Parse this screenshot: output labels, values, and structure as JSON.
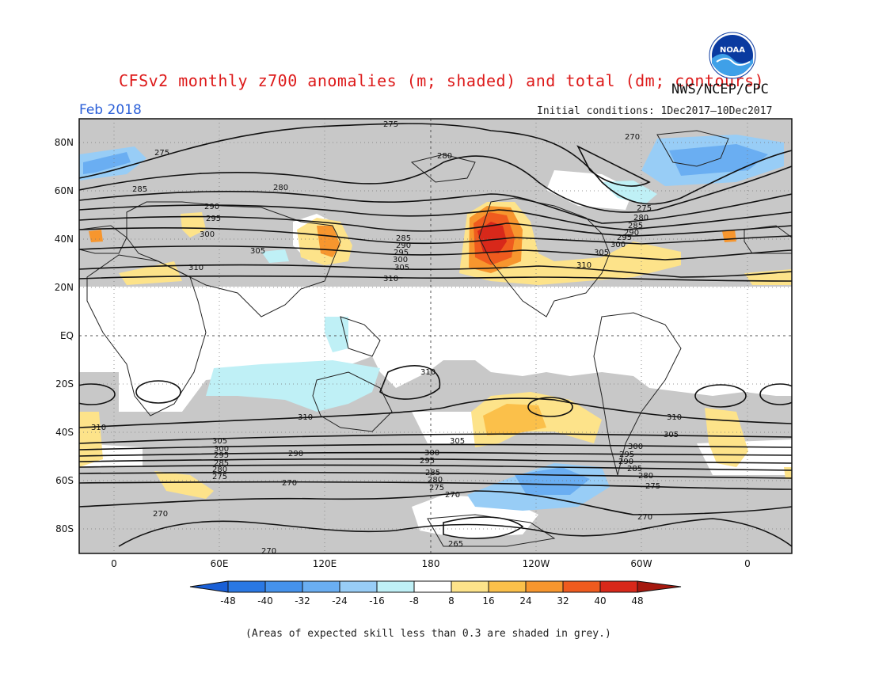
{
  "title": "CFSv2 monthly z700 anomalies (m; shaded) and total (dm; contours)",
  "agency": "NWS/NCEP/CPC",
  "logo_text": "NOAA",
  "month": "Feb 2018",
  "initial_conditions": "Initial conditions: 1Dec2017–10Dec2017",
  "note": "(Areas of expected skill less than 0.3 are shaded in grey.)",
  "axes": {
    "lat_labels": [
      "80N",
      "60N",
      "40N",
      "20N",
      "EQ",
      "20S",
      "40S",
      "60S",
      "80S"
    ],
    "lon_labels": [
      "0",
      "60E",
      "120E",
      "180",
      "120W",
      "60W",
      "0"
    ]
  },
  "colorbar": {
    "labels": [
      "-48",
      "-40",
      "-32",
      "-24",
      "-16",
      "-8",
      "8",
      "16",
      "24",
      "32",
      "40",
      "48"
    ],
    "colors": [
      "#1a5fd6",
      "#2a78e4",
      "#4592ec",
      "#6aaef2",
      "#98cdf6",
      "#bff0f6",
      "#ffffff",
      "#fde38a",
      "#fbc04a",
      "#f7962e",
      "#ef5b1e",
      "#d8281a",
      "#a5180e"
    ]
  },
  "contour_labels": [
    {
      "text": "275"
    },
    {
      "text": "270"
    },
    {
      "text": "280"
    },
    {
      "text": "275"
    },
    {
      "text": "285"
    },
    {
      "text": "280"
    },
    {
      "text": "290"
    },
    {
      "text": "295"
    },
    {
      "text": "300"
    },
    {
      "text": "305"
    },
    {
      "text": "285"
    },
    {
      "text": "290"
    },
    {
      "text": "295"
    },
    {
      "text": "300"
    },
    {
      "text": "305"
    },
    {
      "text": "310"
    },
    {
      "text": "275"
    },
    {
      "text": "280"
    },
    {
      "text": "285"
    },
    {
      "text": "290"
    },
    {
      "text": "295"
    },
    {
      "text": "300"
    },
    {
      "text": "305"
    },
    {
      "text": "310"
    },
    {
      "text": "310"
    },
    {
      "text": "310"
    },
    {
      "text": "310"
    },
    {
      "text": "310"
    },
    {
      "text": "305"
    },
    {
      "text": "300"
    },
    {
      "text": "295"
    },
    {
      "text": "285"
    },
    {
      "text": "280"
    },
    {
      "text": "275"
    },
    {
      "text": "290"
    },
    {
      "text": "270"
    },
    {
      "text": "305"
    },
    {
      "text": "300"
    },
    {
      "text": "295"
    },
    {
      "text": "285"
    },
    {
      "text": "280"
    },
    {
      "text": "275"
    },
    {
      "text": "270"
    },
    {
      "text": "305"
    },
    {
      "text": "300"
    },
    {
      "text": "295"
    },
    {
      "text": "290"
    },
    {
      "text": "285"
    },
    {
      "text": "280"
    },
    {
      "text": "275"
    },
    {
      "text": "270"
    },
    {
      "text": "270"
    },
    {
      "text": "265"
    },
    {
      "text": "270"
    },
    {
      "text": "310"
    }
  ]
}
